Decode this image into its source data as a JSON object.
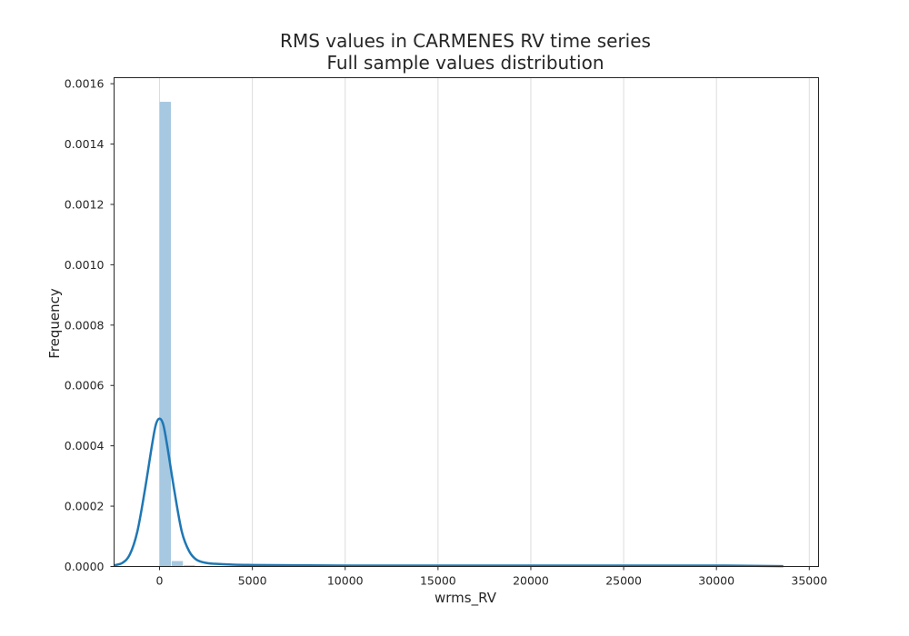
{
  "chart_data": {
    "type": "bar",
    "title": "RMS values in CARMENES RV time series",
    "subtitle": "Full sample values distribution",
    "xlabel": "wrms_RV",
    "ylabel": "Frequency",
    "xlim": [
      -2450,
      35500
    ],
    "ylim": [
      0,
      0.00162
    ],
    "x_ticks": [
      0,
      5000,
      10000,
      15000,
      20000,
      25000,
      30000,
      35000
    ],
    "x_tick_labels": [
      "0",
      "5000",
      "10000",
      "15000",
      "20000",
      "25000",
      "30000",
      "35000"
    ],
    "y_ticks": [
      0,
      0.0002,
      0.0004,
      0.0006,
      0.0008,
      0.001,
      0.0012,
      0.0014,
      0.0016
    ],
    "y_tick_labels": [
      "0.0000",
      "0.0002",
      "0.0004",
      "0.0006",
      "0.0008",
      "0.0010",
      "0.0012",
      "0.0014",
      "0.0016"
    ],
    "grid": "vertical",
    "histogram": {
      "bin_edges": [
        0,
        650,
        1300,
        1950
      ],
      "values": [
        0.00154,
        1.8e-05,
        4e-06
      ],
      "color": "#a6c8e0"
    },
    "kde": {
      "color": "#1f77b4",
      "x": [
        -2450,
        -2000,
        -1600,
        -1200,
        -800,
        -400,
        -200,
        0,
        200,
        400,
        800,
        1200,
        1600,
        2000,
        2500,
        3000,
        4000,
        5000,
        7000,
        10000,
        15000,
        20000,
        25000,
        30000,
        33600
      ],
      "y": [
        4e-06,
        1.2e-05,
        4e-05,
        0.000115,
        0.00025,
        0.000405,
        0.00047,
        0.00049,
        0.00047,
        0.000405,
        0.00025,
        0.000115,
        5e-05,
        2.2e-05,
        1.2e-05,
        9e-06,
        6e-06,
        5e-06,
        4e-06,
        3e-06,
        3e-06,
        3e-06,
        3e-06,
        3e-06,
        1e-06
      ]
    }
  }
}
